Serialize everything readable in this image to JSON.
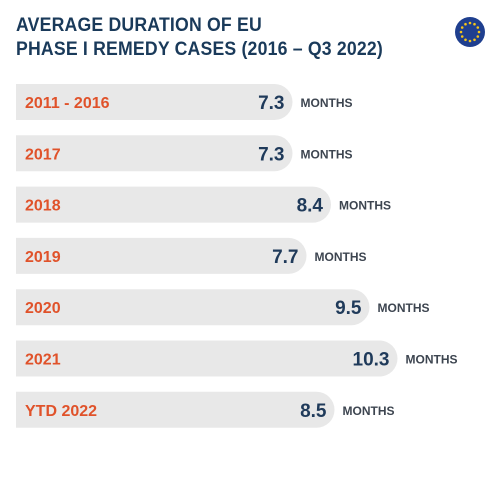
{
  "title_line1": "AVERAGE DURATION OF EU",
  "title_line2": "PHASE I REMEDY CASES (2016 – Q3 2022)",
  "logo": {
    "icon": "eu-flag-icon",
    "background": "#1f3f8f",
    "stars": "#f5c518"
  },
  "colors": {
    "bar": "#e8e8e8",
    "category": "#e0522a",
    "value": "#1f3a5a",
    "unit": "#3d4550"
  },
  "chart_data": {
    "type": "bar",
    "orientation": "horizontal",
    "categories": [
      "2011 - 2016",
      "2017",
      "2018",
      "2019",
      "2020",
      "2021",
      "YTD 2022"
    ],
    "values": [
      7.3,
      7.3,
      8.4,
      7.7,
      9.5,
      10.3,
      8.5
    ],
    "value_labels": [
      "7.3",
      "7.3",
      "8.4",
      "7.7",
      "9.5",
      "10.3",
      "8.5"
    ],
    "unit": "MONTHS"
  }
}
